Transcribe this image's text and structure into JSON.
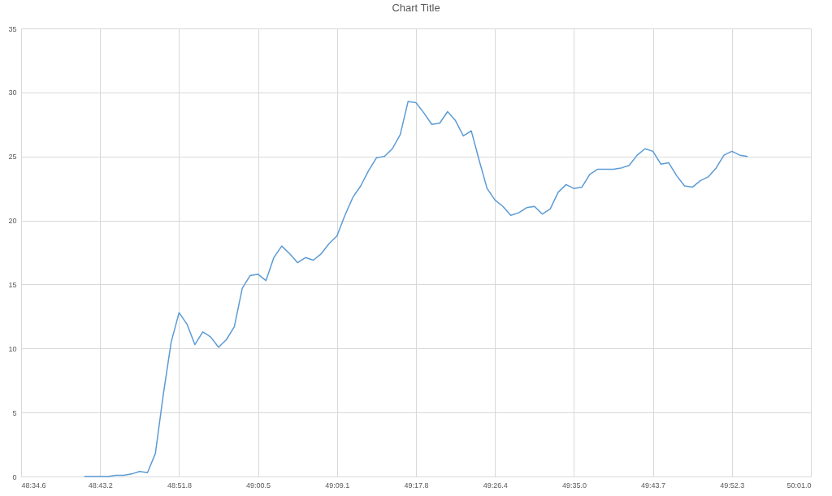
{
  "chart_data": {
    "type": "line",
    "title": "Chart Title",
    "categories": [
      "48:34.6",
      null,
      null,
      null,
      null,
      null,
      null,
      null,
      null,
      null,
      "48:43.2",
      null,
      null,
      null,
      null,
      null,
      null,
      null,
      null,
      null,
      "48:51.8",
      null,
      null,
      null,
      null,
      null,
      null,
      null,
      null,
      null,
      "49:00.5",
      null,
      null,
      null,
      null,
      null,
      null,
      null,
      null,
      null,
      "49:09.1",
      null,
      null,
      null,
      null,
      null,
      null,
      null,
      null,
      null,
      "49:17.8",
      null,
      null,
      null,
      null,
      null,
      null,
      null,
      null,
      null,
      "49:26.4",
      null,
      null,
      null,
      null,
      null,
      null,
      null,
      null,
      null,
      "49:35.0",
      null,
      null,
      null,
      null,
      null,
      null,
      null,
      null,
      null,
      "49:43.7",
      null,
      null,
      null,
      null,
      null,
      null,
      null,
      null,
      null,
      "49:52.3",
      null,
      null,
      null,
      null,
      null,
      null,
      null,
      null,
      null,
      "50:01.0"
    ],
    "series": [
      {
        "color": "#5b9bd5",
        "values": [
          null,
          null,
          null,
          null,
          null,
          null,
          null,
          null,
          0,
          0,
          0,
          0,
          0.1,
          0.1,
          0.2,
          0.4,
          0.3,
          1.8,
          6.4,
          10.5,
          12.8,
          11.9,
          10.3,
          11.3,
          10.9,
          10.1,
          10.7,
          11.7,
          14.7,
          15.7,
          15.8,
          15.3,
          17.1,
          18.0,
          17.4,
          16.7,
          17.1,
          16.9,
          17.4,
          18.2,
          18.8,
          20.4,
          21.8,
          22.7,
          23.9,
          24.9,
          25.0,
          25.6,
          26.7,
          29.3,
          29.2,
          28.4,
          27.5,
          27.6,
          28.5,
          27.8,
          26.6,
          27.0,
          24.7,
          22.5,
          21.6,
          21.1,
          20.4,
          20.6,
          21.0,
          21.1,
          20.5,
          20.9,
          22.2,
          22.8,
          22.5,
          22.6,
          23.6,
          24.0,
          24.0,
          24.0,
          24.1,
          24.3,
          25.1,
          25.6,
          25.4,
          24.4,
          24.5,
          23.5,
          22.7,
          22.6,
          23.1,
          23.4,
          24.1,
          25.1,
          25.4,
          25.1,
          25.0,
          null,
          null,
          null,
          null,
          null,
          null,
          null,
          null
        ]
      }
    ],
    "ylim": [
      0,
      35
    ],
    "yticks": [
      0,
      5,
      10,
      15,
      20,
      25,
      30,
      35
    ],
    "grid": true,
    "marker": "none",
    "line_style": "solid"
  }
}
